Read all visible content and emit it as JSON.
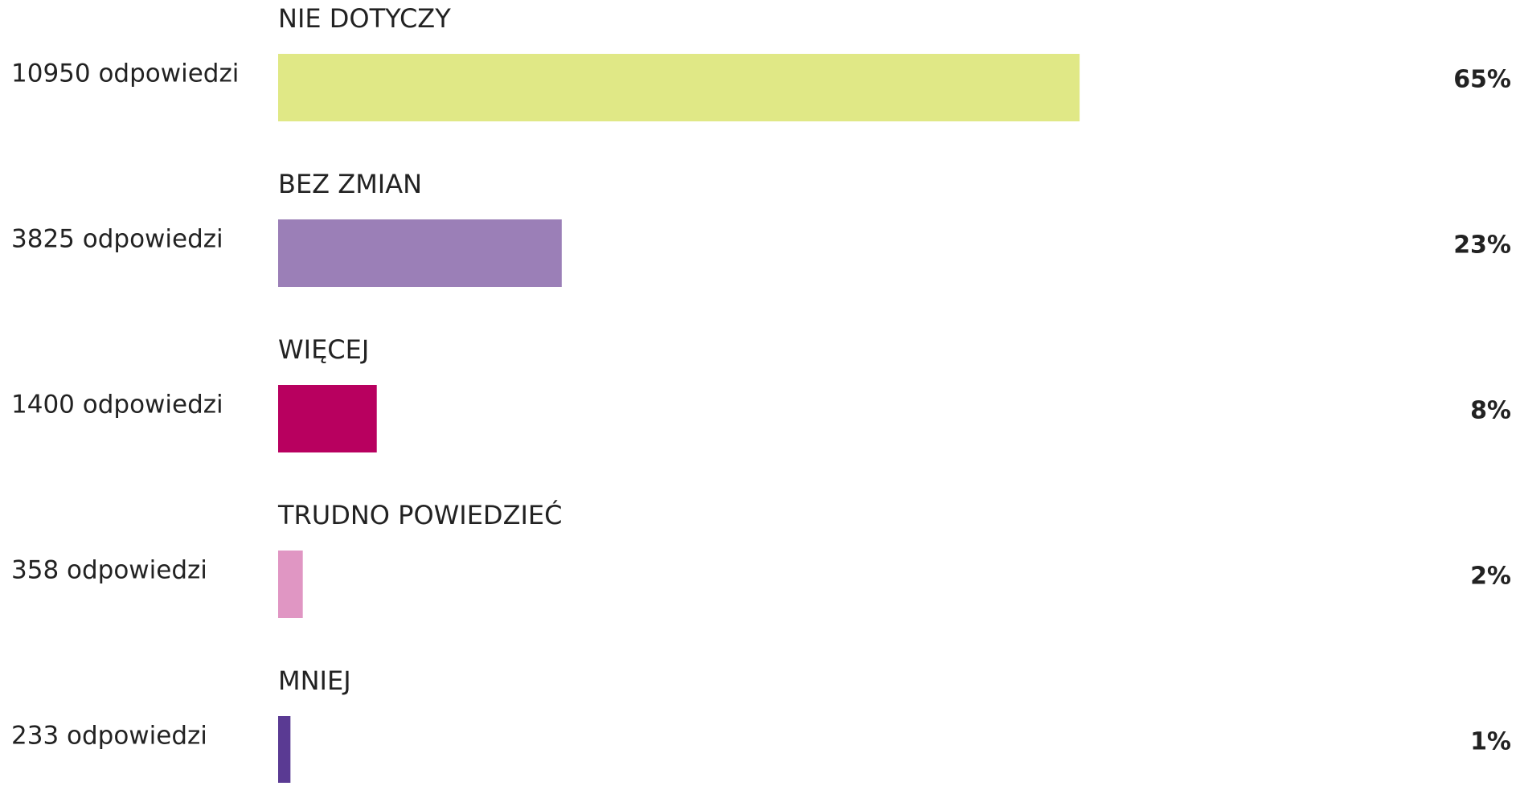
{
  "chart_data": {
    "type": "bar",
    "orientation": "horizontal",
    "categories": [
      "NIE DOTYCZY",
      "BEZ ZMIAN",
      "WIĘCEJ",
      "TRUDNO POWIEDZIEĆ",
      "MNIEJ"
    ],
    "values": [
      65,
      23,
      8,
      2,
      1
    ],
    "value_labels": [
      "65%",
      "23%",
      "8%",
      "2%",
      "1%"
    ],
    "response_labels": [
      "10950 odpowiedzi",
      "3825 odpowiedzi",
      "1400 odpowiedzi",
      "358 odpowiedzi",
      "233 odpowiedzi"
    ],
    "colors": [
      "#e0e886",
      "#9b7fb7",
      "#b8005f",
      "#e096c3",
      "#5a3a93"
    ],
    "xlim": [
      0,
      100
    ]
  }
}
